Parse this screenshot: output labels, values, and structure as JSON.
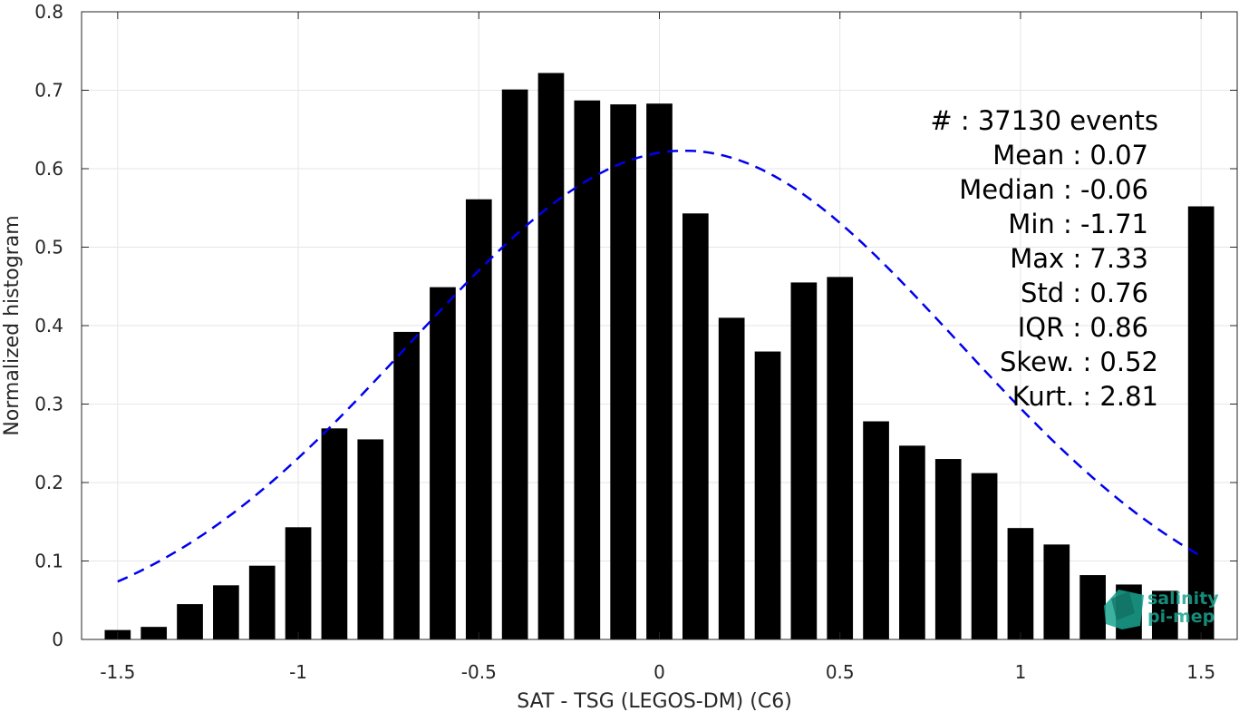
{
  "chart_data": {
    "type": "bar",
    "xlabel": "SAT - TSG (LEGOS-DM) (C6)",
    "ylabel": "Normalized histogram",
    "xlim": [
      -1.6,
      1.6
    ],
    "ylim": [
      0,
      0.8
    ],
    "xticks": [
      -1.5,
      -1,
      -0.5,
      0,
      0.5,
      1,
      1.5
    ],
    "xtick_labels": [
      "-1.5",
      "-1",
      "-0.5",
      "0",
      "0.5",
      "1",
      "1.5"
    ],
    "yticks": [
      0,
      0.1,
      0.2,
      0.3,
      0.4,
      0.5,
      0.6,
      0.7,
      0.8
    ],
    "ytick_labels": [
      "0",
      "0.1",
      "0.2",
      "0.3",
      "0.4",
      "0.5",
      "0.6",
      "0.7",
      "0.8"
    ],
    "grid": true,
    "bar_color": "#000000",
    "x": [
      -1.5,
      -1.4,
      -1.3,
      -1.2,
      -1.1,
      -1.0,
      -0.9,
      -0.8,
      -0.7,
      -0.6,
      -0.5,
      -0.4,
      -0.3,
      -0.2,
      -0.1,
      0.0,
      0.1,
      0.2,
      0.3,
      0.4,
      0.5,
      0.6,
      0.7,
      0.8,
      0.9,
      1.0,
      1.1,
      1.2,
      1.3,
      1.4,
      1.5
    ],
    "values": [
      0.012,
      0.016,
      0.045,
      0.069,
      0.094,
      0.143,
      0.269,
      0.255,
      0.392,
      0.449,
      0.561,
      0.701,
      0.722,
      0.687,
      0.682,
      0.683,
      0.543,
      0.41,
      0.367,
      0.455,
      0.462,
      0.278,
      0.247,
      0.23,
      0.212,
      0.142,
      0.121,
      0.082,
      0.07,
      0.062,
      0.552
    ],
    "fit_curve": {
      "style": "dashed",
      "color": "#0000ee",
      "type": "gaussian",
      "mean": 0.07,
      "std": 0.76,
      "peak": 0.623,
      "x_range": [
        -1.5,
        1.5
      ]
    },
    "stats": [
      {
        "label": "#  : 37130 events"
      },
      {
        "label": "Mean : 0.07"
      },
      {
        "label": "Median : -0.06"
      },
      {
        "label": "Min : -1.71"
      },
      {
        "label": "Max : 7.33"
      },
      {
        "label": "Std : 0.76"
      },
      {
        "label": "IQR : 0.86"
      },
      {
        "label": "Skew. : 0.52"
      },
      {
        "label": "Kurt. : 2.81"
      }
    ]
  },
  "logo": {
    "line1": "salinity",
    "line2": "pi-mep",
    "color": "#1aa38f"
  }
}
